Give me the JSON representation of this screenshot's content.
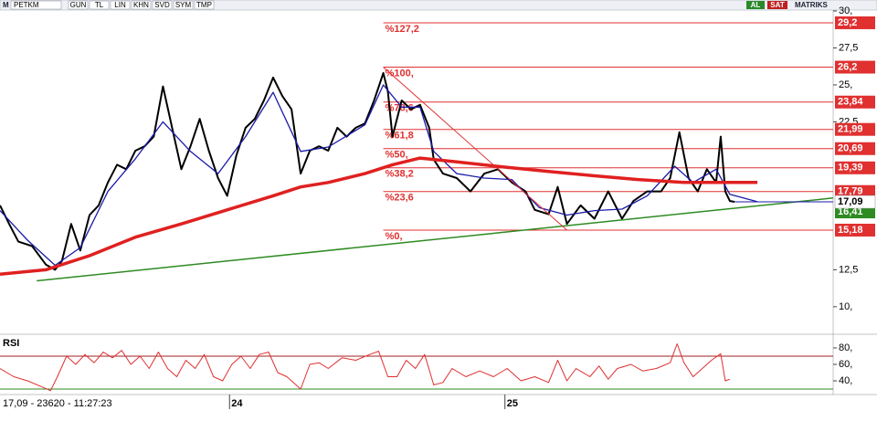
{
  "toolbar": {
    "logo": "M",
    "symbol": "PETKM",
    "buttons": [
      "GUN",
      "TL",
      "LIN",
      "KHN",
      "SVD",
      "SYM",
      "TMP"
    ],
    "buy": "AL",
    "sell": "SAT",
    "brand": "MATRIKS"
  },
  "status": "17,09 - 23620 - 11:27:23",
  "chart_data": [
    {
      "type": "line",
      "xlim": [
        -10,
        26.3
      ],
      "ylim": [
        8.2,
        30
      ],
      "yticks": [
        {
          "value": 30,
          "label": "30,"
        },
        {
          "value": 27.5,
          "label": "27,5"
        },
        {
          "value": 25,
          "label": "25,"
        },
        {
          "value": 22.5,
          "label": "22,5"
        },
        {
          "value": 12.5,
          "label": "12,5"
        },
        {
          "value": 10,
          "label": "10,"
        }
      ],
      "series": [
        {
          "color": "#000000",
          "width": 2,
          "x": [
            -10.0,
            -9.6,
            -9.2,
            -8.6,
            -8.0,
            -7.6,
            -7.3,
            -6.9,
            -6.5,
            -6.1,
            -5.7,
            -5.3,
            -4.9,
            -4.5,
            -4.1,
            -3.7,
            -3.3,
            -2.9,
            -2.5,
            -2.1,
            -1.7,
            -1.3,
            -0.9,
            -0.5,
            -0.1,
            0.3,
            0.7,
            1.1,
            1.5,
            1.9,
            2.3,
            2.7,
            3.1,
            3.5,
            3.9,
            4.3,
            4.7,
            5.1,
            5.5,
            5.9,
            6.3,
            6.7,
            6.9,
            7.1,
            7.5,
            7.9,
            8.3,
            8.7,
            8.9,
            9.3,
            9.9,
            10.5,
            11.1,
            11.7,
            12.3,
            12.9,
            13.3,
            13.9,
            14.3,
            14.7,
            15.3,
            15.9,
            16.5,
            17.1,
            17.6,
            18.2,
            18.8,
            19.2,
            19.6,
            20.0,
            20.4,
            20.8,
            21.2,
            21.4,
            21.6,
            21.8,
            22.0
          ],
          "values": [
            16.85,
            15.6,
            14.4,
            14.1,
            12.85,
            12.5,
            13.1,
            15.6,
            13.8,
            16.2,
            16.85,
            18.4,
            19.6,
            19.3,
            20.55,
            20.85,
            21.5,
            24.9,
            22.1,
            19.3,
            20.85,
            22.7,
            20.55,
            18.7,
            17.5,
            20.25,
            22.1,
            22.7,
            23.95,
            25.5,
            24.25,
            23.35,
            19.0,
            20.55,
            20.85,
            20.55,
            22.1,
            21.5,
            22.1,
            22.4,
            23.95,
            25.8,
            24.55,
            21.5,
            23.95,
            23.35,
            23.65,
            22.1,
            19.95,
            19.0,
            18.7,
            17.8,
            19.0,
            19.3,
            18.4,
            17.8,
            16.55,
            16.25,
            18.1,
            15.6,
            16.85,
            15.95,
            17.8,
            15.95,
            17.15,
            17.8,
            17.8,
            18.7,
            21.8,
            18.7,
            17.8,
            19.3,
            18.4,
            21.5,
            17.8,
            17.15,
            17.09
          ]
        },
        {
          "color": "#1a1aa8",
          "width": 1.3,
          "x": [
            -10.0,
            -8.8,
            -7.6,
            -6.5,
            -5.3,
            -4.1,
            -2.9,
            -1.7,
            -0.5,
            0.7,
            1.9,
            3.1,
            4.3,
            5.9,
            6.7,
            7.5,
            8.3,
            8.9,
            9.9,
            11.1,
            12.3,
            13.5,
            14.7,
            15.9,
            17.1,
            18.2,
            19.4,
            20.2,
            21.2,
            21.8,
            23.0
          ],
          "values": [
            16.5,
            14.5,
            12.8,
            14.0,
            17.8,
            20.0,
            22.5,
            20.5,
            19.0,
            21.5,
            24.5,
            20.5,
            20.8,
            22.3,
            25.0,
            23.5,
            23.5,
            20.5,
            19.0,
            18.7,
            18.6,
            16.7,
            16.2,
            16.5,
            16.6,
            17.5,
            19.5,
            18.4,
            19.3,
            17.6,
            17.1
          ]
        },
        {
          "color": "#e02020",
          "width": 3.5,
          "x": [
            -10.0,
            -8.0,
            -6.1,
            -4.1,
            -2.1,
            -0.1,
            1.9,
            3.1,
            4.3,
            5.9,
            7.1,
            8.3,
            9.9,
            11.9,
            13.9,
            15.9,
            17.8,
            19.8,
            21.8,
            23.0
          ],
          "values": [
            12.2,
            12.5,
            13.45,
            14.7,
            15.6,
            16.55,
            17.5,
            18.1,
            18.4,
            19.0,
            19.6,
            20.05,
            19.8,
            19.45,
            19.15,
            18.85,
            18.6,
            18.4,
            18.4,
            18.4
          ]
        },
        {
          "color": "#2e8b22",
          "width": 1.5,
          "x": [
            -8.4,
            26.3
          ],
          "values": [
            11.75,
            17.35
          ]
        },
        {
          "color": "#e03030",
          "width": 1,
          "x": [
            6.7,
            14.7
          ],
          "values": [
            26.2,
            15.18
          ]
        },
        {
          "color": "#1a1aa8",
          "width": 1,
          "x": [
            22.0,
            26.3
          ],
          "values": [
            17.09,
            17.09
          ]
        }
      ],
      "fibonacci": {
        "color": "#e03030",
        "x_start": 6.7,
        "levels": [
          29.2,
          26.2,
          23.84,
          21.99,
          20.69,
          19.39,
          17.79,
          15.18
        ],
        "value_labels": [
          "29,2",
          "26,2",
          "23,84",
          "21,99",
          "20,69",
          "19,39",
          "17,79",
          "15,18"
        ],
        "names": [
          "%127,2",
          "%100,",
          "%78,6",
          "%61,8",
          "%50,",
          "%38,2",
          "%23,6",
          "%0,"
        ]
      },
      "trend_value": {
        "value": 16.41,
        "label": "16,41",
        "color": "#2e8b22"
      },
      "last_price": {
        "value": 17.09,
        "label": "17,09"
      }
    },
    {
      "type": "line",
      "title": "RSI",
      "xlim": [
        -10,
        26.3
      ],
      "ylim": [
        25.6,
        94.4
      ],
      "xticks": [
        {
          "value": 0,
          "label": "24"
        },
        {
          "value": 12,
          "label": "25"
        }
      ],
      "yticks": [
        {
          "value": 80,
          "label": "80,"
        },
        {
          "value": 60,
          "label": "60,"
        },
        {
          "value": 40,
          "label": "40,"
        }
      ],
      "bands": [
        {
          "value": 70,
          "color": "#a02020"
        },
        {
          "value": 30,
          "color": "#2e8b22"
        }
      ],
      "series": [
        {
          "color": "#e03030",
          "width": 1,
          "x": [
            -10.0,
            -9.4,
            -8.8,
            -8.2,
            -7.8,
            -7.5,
            -7.1,
            -6.7,
            -6.3,
            -5.9,
            -5.5,
            -5.1,
            -4.7,
            -4.3,
            -3.9,
            -3.5,
            -3.1,
            -2.7,
            -2.3,
            -1.9,
            -1.5,
            -1.1,
            -0.7,
            -0.3,
            0.1,
            0.5,
            0.9,
            1.3,
            1.7,
            2.1,
            2.5,
            2.9,
            3.1,
            3.5,
            3.9,
            4.3,
            4.9,
            5.5,
            6.1,
            6.5,
            6.9,
            7.3,
            7.7,
            8.1,
            8.5,
            8.9,
            9.3,
            9.7,
            10.3,
            10.9,
            11.5,
            12.1,
            12.7,
            13.3,
            13.9,
            14.3,
            14.7,
            15.1,
            15.7,
            16.1,
            16.5,
            16.9,
            17.5,
            18.0,
            18.6,
            19.2,
            19.5,
            19.8,
            20.2,
            20.6,
            21.0,
            21.4,
            21.6,
            21.8
          ],
          "values": [
            55,
            45,
            40,
            33,
            28,
            45,
            70,
            60,
            72,
            62,
            75,
            68,
            77,
            60,
            70,
            55,
            75,
            55,
            45,
            65,
            55,
            72,
            45,
            40,
            60,
            70,
            55,
            72,
            75,
            50,
            45,
            35,
            30,
            60,
            62,
            55,
            68,
            65,
            72,
            76,
            45,
            45,
            65,
            55,
            72,
            35,
            38,
            55,
            45,
            52,
            45,
            55,
            40,
            45,
            38,
            65,
            40,
            55,
            45,
            58,
            42,
            55,
            60,
            52,
            55,
            62,
            85,
            62,
            45,
            55,
            65,
            73,
            40,
            42
          ]
        }
      ]
    }
  ]
}
